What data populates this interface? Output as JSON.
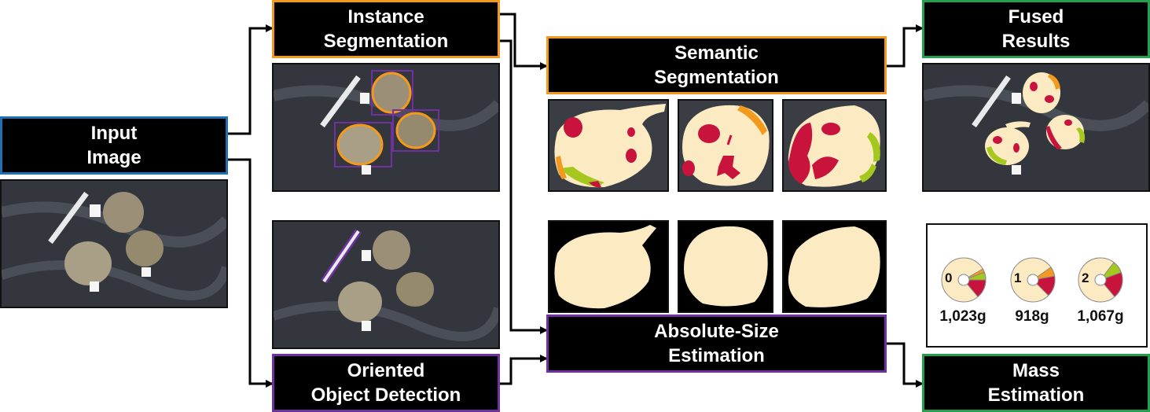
{
  "nodes": {
    "input": "Input\nImage",
    "instance": "Instance\nSegmentation",
    "oriented": "Oriented\nObject Detection",
    "semantic": "Semantic\nSegmentation",
    "absolute": "Absolute-Size\nEstimation",
    "fused": "Fused\nResults",
    "mass": "Mass\nEstimation"
  },
  "colors": {
    "input_border": "#1f6fb4",
    "instance_border": "#f39a1c",
    "oriented_border": "#7030a0",
    "semantic_border": "#f39a1c",
    "absolute_border": "#7030a0",
    "fused_border": "#23a04b",
    "mass_border": "#23a04b",
    "beet": "#fcebc2",
    "damage": "#c8143c",
    "leaf": "#a5c81e",
    "tip": "#f39a1c"
  },
  "mass_results": [
    {
      "id": "0",
      "mass": "1,023g"
    },
    {
      "id": "1",
      "mass": "918g"
    },
    {
      "id": "2",
      "mass": "1,067g"
    }
  ]
}
